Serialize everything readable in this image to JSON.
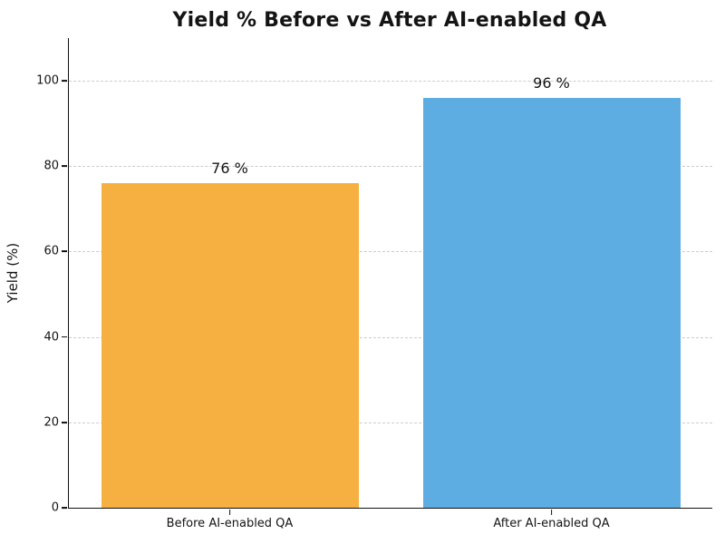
{
  "chart_data": {
    "type": "bar",
    "title": "Yield % Before vs After AI-enabled QA",
    "xlabel": "",
    "ylabel": "Yield (%)",
    "categories": [
      "Before AI-enabled QA",
      "After AI-enabled QA"
    ],
    "values": [
      76,
      96
    ],
    "bar_labels": [
      "76 %",
      "96 %"
    ],
    "bar_colors": [
      "#F5B041",
      "#5DADE2"
    ],
    "ylim": [
      0,
      110
    ],
    "yticks": [
      0,
      20,
      40,
      60,
      80,
      100
    ],
    "grid": "horizontal-dashed",
    "gridline_color": "#cccccc",
    "legend_position": "none"
  }
}
